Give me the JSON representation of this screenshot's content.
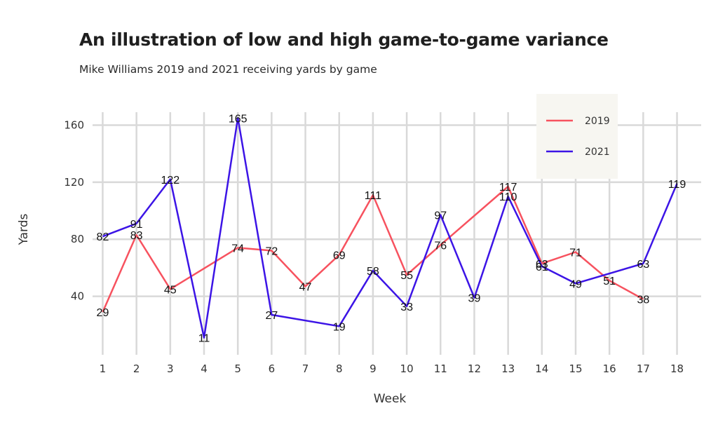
{
  "title": "An illustration of low and high game-to-game variance",
  "subtitle": "Mike Williams 2019 and 2021 receiving yards by game",
  "chart_data": {
    "type": "line",
    "xlabel": "Week",
    "ylabel": "Yards",
    "x_ticks": [
      1,
      2,
      3,
      4,
      5,
      6,
      7,
      8,
      9,
      10,
      11,
      12,
      13,
      14,
      15,
      16,
      17,
      18
    ],
    "y_ticks": [
      40,
      80,
      120,
      160
    ],
    "xlim": [
      0.7,
      18.3
    ],
    "ylim": [
      -1,
      174
    ],
    "grid": true,
    "legend_position": "top-right",
    "series": [
      {
        "name": "2019",
        "color": "#f7525f",
        "x": [
          1,
          2,
          3,
          5,
          6,
          7,
          8,
          9,
          10,
          11,
          13,
          14,
          15,
          16,
          17
        ],
        "y": [
          29,
          83,
          45,
          74,
          72,
          47,
          69,
          111,
          55,
          76,
          117,
          63,
          71,
          51,
          38
        ]
      },
      {
        "name": "2021",
        "color": "#3c14e6",
        "x": [
          1,
          2,
          3,
          4,
          5,
          6,
          8,
          9,
          10,
          11,
          12,
          13,
          14,
          15,
          17,
          18
        ],
        "y": [
          82,
          91,
          122,
          11,
          165,
          27,
          19,
          58,
          33,
          97,
          39,
          110,
          61,
          49,
          63,
          119
        ]
      }
    ]
  }
}
